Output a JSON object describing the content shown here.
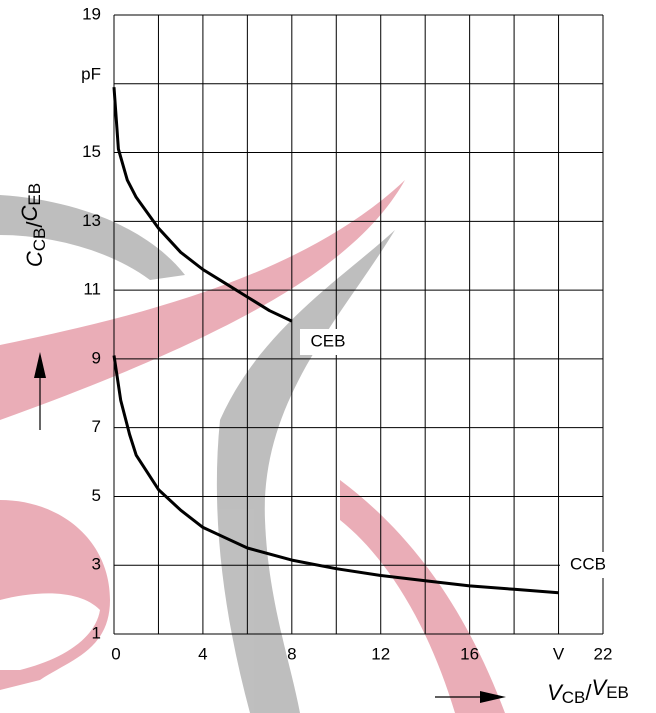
{
  "chart_data": {
    "type": "line",
    "xlabel": [
      "V",
      "CB",
      "/",
      "V",
      "EB"
    ],
    "ylabel": [
      "C",
      "CB",
      "/",
      "C",
      "EB"
    ],
    "xlim": [
      0,
      22
    ],
    "ylim": [
      1,
      19
    ],
    "xticks": [
      0,
      4,
      8,
      12,
      16,
      {
        "value": 20,
        "label": "V"
      },
      22
    ],
    "yticks": [
      1,
      3,
      5,
      7,
      9,
      11,
      13,
      15,
      {
        "value": 17,
        "label": "pF"
      },
      19
    ],
    "xgrid": [
      0,
      2,
      4,
      6,
      8,
      10,
      12,
      14,
      16,
      18,
      20,
      22
    ],
    "grid": true,
    "series": [
      {
        "name": "CEB",
        "color": "#000000",
        "x": [
          0,
          0.2,
          0.6,
          1,
          2,
          3,
          4,
          5,
          6,
          7,
          8
        ],
        "values": [
          16.9,
          15.1,
          14.2,
          13.7,
          12.8,
          12.1,
          11.6,
          11.2,
          10.8,
          10.4,
          10.1
        ]
      },
      {
        "name": "CCB",
        "color": "#000000",
        "x": [
          0,
          0.3,
          0.7,
          1,
          2,
          3,
          4,
          5,
          6,
          8,
          10,
          12,
          14,
          16,
          18,
          20
        ],
        "values": [
          9.1,
          7.8,
          6.8,
          6.2,
          5.2,
          4.6,
          4.1,
          3.8,
          3.5,
          3.15,
          2.9,
          2.7,
          2.55,
          2.4,
          2.3,
          2.2
        ]
      }
    ]
  }
}
